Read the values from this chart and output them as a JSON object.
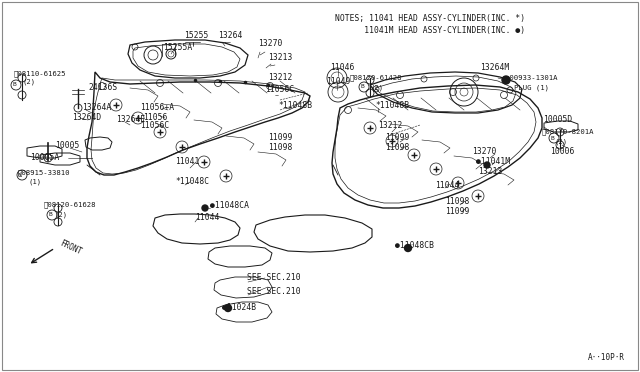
{
  "bg_color": "#ffffff",
  "line_color": "#1a1a1a",
  "text_color": "#1a1a1a",
  "border_color": "#aaaaaa",
  "notes1": "NOTES; 11041 HEAD ASSY-CYLINDER(INC. *)",
  "notes2": "       11041M HEAD ASSY-CYLINDER(INC. ●)",
  "page_ref": "A··10P·R",
  "figsize": [
    6.4,
    3.72
  ],
  "dpi": 100
}
